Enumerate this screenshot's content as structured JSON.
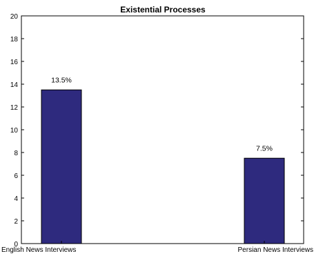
{
  "chart_data": {
    "type": "bar",
    "title": "Existential Processes",
    "categories": [
      "English News Interviews",
      "Persian News Interviews"
    ],
    "values": [
      13.5,
      7.5
    ],
    "data_labels": [
      "13.5%",
      "7.5%"
    ],
    "xlabel": "",
    "ylabel": "",
    "ylim": [
      0,
      20
    ],
    "yticks": [
      0,
      2,
      4,
      6,
      8,
      10,
      12,
      14,
      16,
      18,
      20
    ],
    "grid": false,
    "bar_color": "#2e2a7e"
  }
}
